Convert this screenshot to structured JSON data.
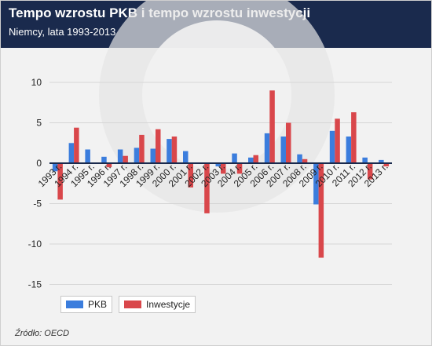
{
  "header": {
    "title": "Tempo wzrostu PKB i tempo wzrostu inwestycji",
    "subtitle": "Niemcy, lata 1993-2013"
  },
  "source": "Źródło: OECD",
  "colors": {
    "header_bg": "#1a2a4d",
    "pkb": "#3b7ddd",
    "inwestycje": "#d9474b",
    "zero_line": "#1a2a4d"
  },
  "chart_data": {
    "type": "bar",
    "title": "Tempo wzrostu PKB i tempo wzrostu inwestycji",
    "subtitle": "Niemcy, lata 1993-2013",
    "xlabel": "",
    "ylabel": "",
    "ylim": [
      -15,
      10
    ],
    "yticks": [
      -15,
      -10,
      -5,
      0,
      5,
      10
    ],
    "grid": true,
    "legend_position": "bottom-left",
    "categories": [
      "1993 r.",
      "1994 r.",
      "1995 r.",
      "1996 r.",
      "1997 r.",
      "1998 r.",
      "1999 r.",
      "2000 r.",
      "2001 r.",
      "2002 r.",
      "2003 r.",
      "2004 r.",
      "2005 r.",
      "2006 r.",
      "2007 r.",
      "2008 r.",
      "2009 r.",
      "2010 r.",
      "2011 r.",
      "2012 r.",
      "2013 r."
    ],
    "series": [
      {
        "name": "PKB",
        "values": [
          -1.0,
          2.5,
          1.7,
          0.8,
          1.7,
          1.9,
          1.8,
          3.0,
          1.5,
          0.0,
          -0.4,
          1.2,
          0.7,
          3.7,
          3.3,
          1.1,
          -5.1,
          4.0,
          3.3,
          0.7,
          0.4
        ]
      },
      {
        "name": "Inwestycje",
        "values": [
          -4.5,
          4.4,
          0.0,
          -0.5,
          0.9,
          3.5,
          4.2,
          3.3,
          -3.0,
          -6.2,
          -1.3,
          -1.3,
          1.0,
          9.0,
          5.0,
          0.5,
          -11.7,
          5.5,
          6.3,
          -2.0,
          -0.4
        ]
      }
    ]
  }
}
